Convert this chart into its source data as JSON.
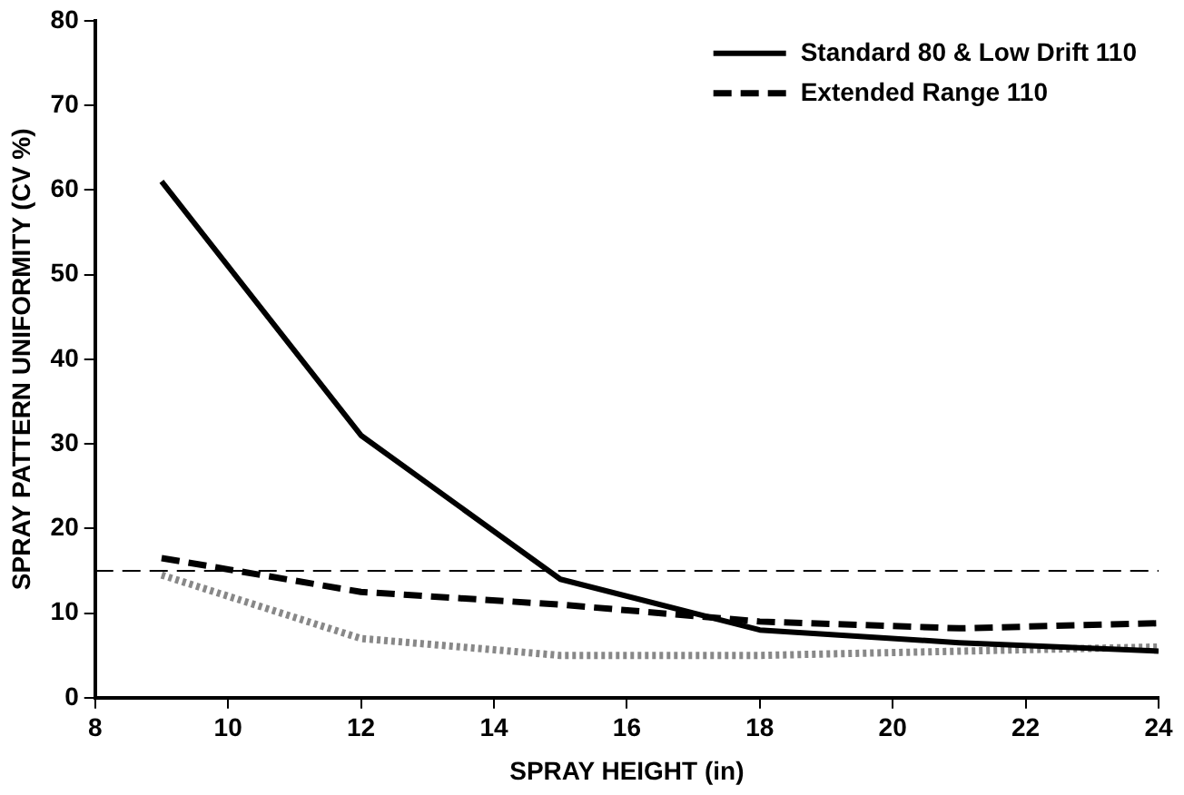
{
  "chart_data": {
    "type": "line",
    "xlabel": "SPRAY HEIGHT (in)",
    "ylabel": "SPRAY PATTERN UNIFORMITY (CV %)",
    "x": [
      9,
      12,
      15,
      18,
      21,
      24
    ],
    "series": [
      {
        "name": "Standard 80 & Low Drift 110",
        "color": "#000000",
        "line_style": "solid",
        "values": [
          61,
          31,
          14,
          8,
          6.5,
          5.5
        ]
      },
      {
        "name": "Extended Range 110",
        "color": "#000000",
        "line_style": "dashed",
        "values": [
          16.5,
          12.5,
          11,
          9,
          8.2,
          8.8
        ]
      },
      {
        "color": "#888888",
        "line_style": "dotted",
        "values": [
          14.5,
          7,
          5,
          5,
          5.5,
          6
        ]
      }
    ],
    "xlim": [
      8,
      24
    ],
    "xticks": [
      8,
      10,
      12,
      14,
      16,
      18,
      20,
      22,
      24
    ],
    "ylim": [
      0,
      80
    ],
    "yticks": [
      0,
      10,
      20,
      30,
      40,
      50,
      60,
      70,
      80
    ],
    "ref_lines": [
      {
        "axis": "y",
        "value": 15,
        "color": "#000000",
        "line_style": "dashed"
      }
    ],
    "grid": false,
    "legend": "top right",
    "marker": "none"
  }
}
